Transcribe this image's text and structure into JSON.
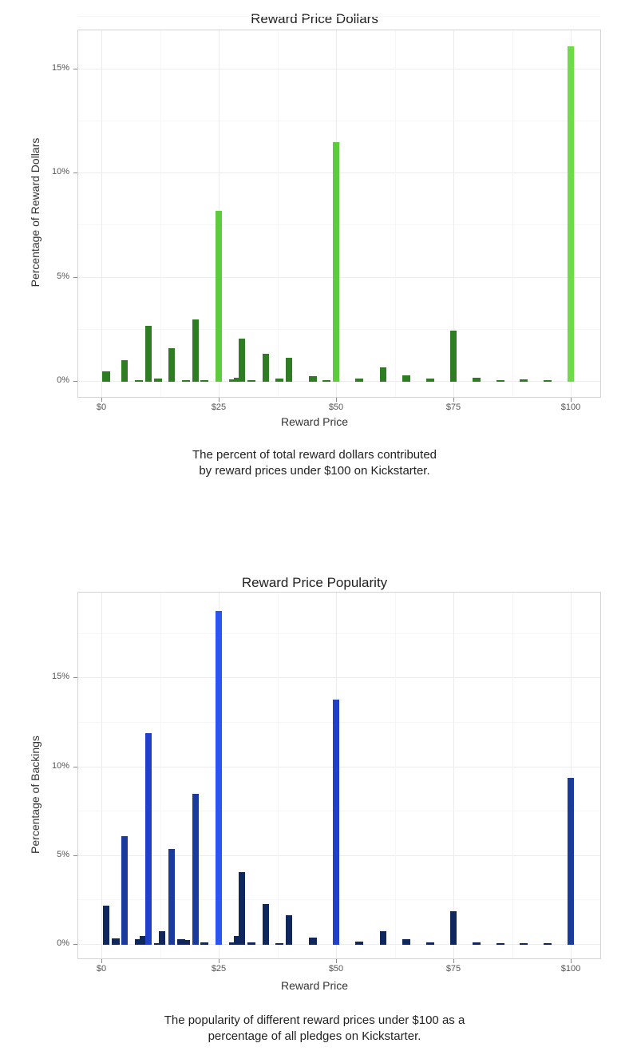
{
  "charts": [
    {
      "title": "Reward Price Dollars",
      "xlabel": "Reward Price",
      "ylabel": "Percentage of Reward Dollars",
      "caption_line1": "The percent of total reward dollars contributed",
      "caption_line2": "by reward prices under $100 on Kickstarter.",
      "yticks": [
        "0%",
        "5%",
        "10%",
        "15%"
      ],
      "xticks": [
        "$0",
        "$25",
        "$50",
        "$75",
        "$100"
      ],
      "colors": {
        "normal": "#2e7d22",
        "highlight": "#5ccc3c",
        "highlight_top": "#6ddc48"
      }
    },
    {
      "title": "Reward Price Popularity",
      "xlabel": "Reward Price",
      "ylabel": "Percentage of Backings",
      "caption_line1": "The popularity of different reward prices under $100 as a",
      "caption_line2": "percentage of all pledges on Kickstarter.",
      "yticks": [
        "0%",
        "5%",
        "10%",
        "15%"
      ],
      "xticks": [
        "$0",
        "$25",
        "$50",
        "$75",
        "$100"
      ],
      "colors": {
        "normal": "#10275e",
        "mid": "#1a3a9c",
        "highlight": "#2040c8",
        "highlight_top": "#2a55f0"
      }
    }
  ],
  "chart_data": [
    {
      "type": "bar",
      "title": "Reward Price Dollars",
      "xlabel": "Reward Price",
      "ylabel": "Percentage of Reward Dollars",
      "xlim": [
        0,
        100
      ],
      "ylim": [
        0,
        16.5
      ],
      "grid": true,
      "x": [
        1,
        5,
        8,
        10,
        12,
        15,
        18,
        20,
        22,
        25,
        28,
        29,
        30,
        32,
        35,
        38,
        40,
        45,
        48,
        50,
        55,
        60,
        65,
        70,
        75,
        80,
        85,
        90,
        95,
        100
      ],
      "values": [
        0.5,
        1.05,
        0.05,
        2.7,
        0.15,
        1.6,
        0.05,
        3.0,
        0.05,
        8.2,
        0.1,
        0.2,
        2.05,
        0.05,
        1.35,
        0.15,
        1.15,
        0.25,
        0.05,
        11.5,
        0.15,
        0.7,
        0.3,
        0.15,
        2.45,
        0.2,
        0.05,
        0.1,
        0.05,
        16.1
      ],
      "highlighted_prices": [
        25,
        50,
        100
      ]
    },
    {
      "type": "bar",
      "title": "Reward Price Popularity",
      "xlabel": "Reward Price",
      "ylabel": "Percentage of Backings",
      "xlim": [
        0,
        100
      ],
      "ylim": [
        0,
        19.5
      ],
      "grid": true,
      "x": [
        1,
        3,
        5,
        8,
        9,
        10,
        12,
        13,
        15,
        17,
        18,
        20,
        22,
        25,
        28,
        29,
        30,
        32,
        35,
        38,
        40,
        45,
        50,
        55,
        60,
        65,
        70,
        75,
        80,
        85,
        90,
        95,
        100
      ],
      "values": [
        2.2,
        0.35,
        6.1,
        0.3,
        0.5,
        11.9,
        0.1,
        0.75,
        5.4,
        0.3,
        0.25,
        8.5,
        0.15,
        18.8,
        0.15,
        0.5,
        4.1,
        0.15,
        2.3,
        0.1,
        1.65,
        0.4,
        13.8,
        0.2,
        0.75,
        0.3,
        0.15,
        1.9,
        0.15,
        0.05,
        0.05,
        0.05,
        9.4
      ],
      "highlighted_prices": [
        10,
        25,
        50
      ]
    }
  ]
}
